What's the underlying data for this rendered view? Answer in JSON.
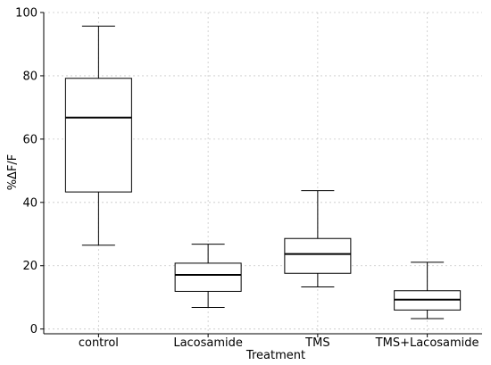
{
  "chart_data": {
    "type": "box",
    "xlabel": "Treatment",
    "ylabel": "%ΔF/F",
    "ylim": [
      -1.5,
      100
    ],
    "yticks": [
      0,
      20,
      40,
      60,
      80,
      100
    ],
    "grid": true,
    "categories": [
      "control",
      "Lacosamide",
      "TMS",
      "TMS+Lacosamide"
    ],
    "boxes": [
      {
        "whisker_low": 26.5,
        "q1": 43.3,
        "median": 66.8,
        "q3": 79.2,
        "whisker_high": 95.7
      },
      {
        "whisker_low": 6.8,
        "q1": 11.9,
        "median": 17.1,
        "q3": 20.8,
        "whisker_high": 26.8
      },
      {
        "whisker_low": 13.3,
        "q1": 17.6,
        "median": 23.7,
        "q3": 28.6,
        "whisker_high": 43.7
      },
      {
        "whisker_low": 3.3,
        "q1": 6.0,
        "median": 9.3,
        "q3": 12.1,
        "whisker_high": 21.1
      }
    ],
    "colors": {
      "box": "#000000",
      "median": "#000000",
      "grid": "#c8c8c8"
    }
  }
}
